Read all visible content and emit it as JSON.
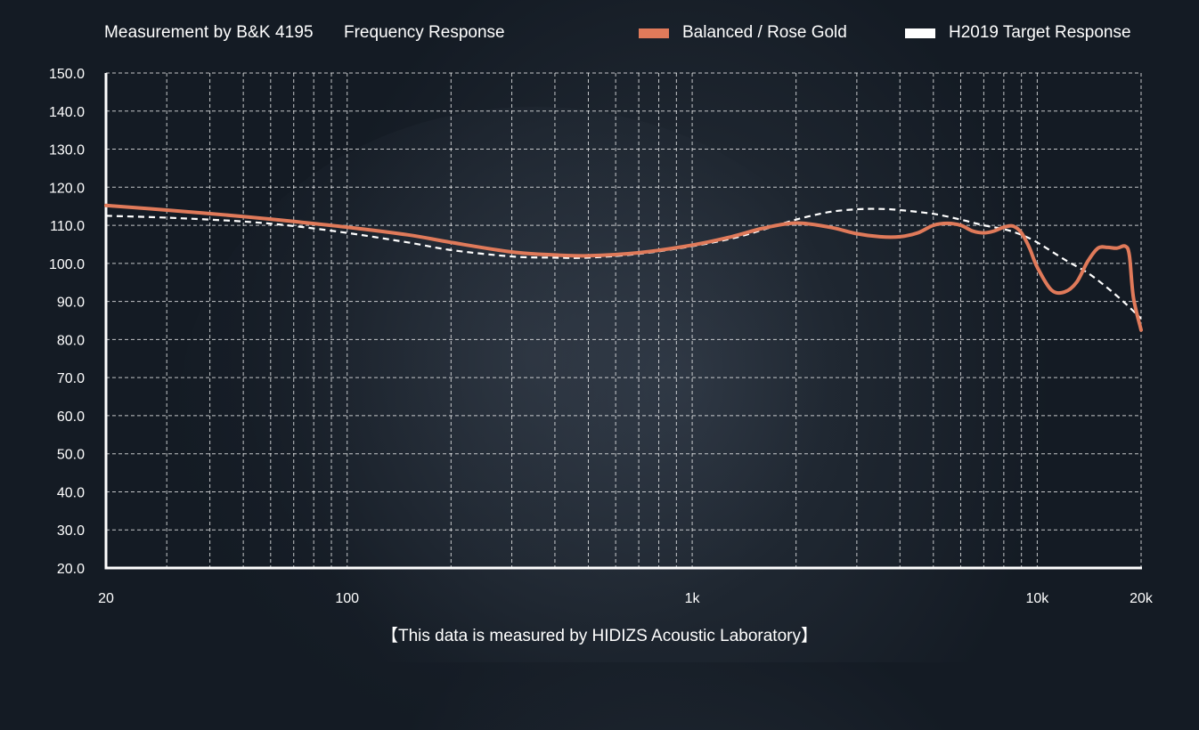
{
  "header": {
    "title": "Measurement by B&K 4195",
    "subtitle": "Frequency Response"
  },
  "footer": {
    "note": "【This data is measured by HIDIZS Acoustic Laboratory】"
  },
  "colors": {
    "series_measured": "#e07a5a",
    "series_target": "#ffffff",
    "grid": "#ffffff",
    "axis": "#ffffff"
  },
  "chart_data": {
    "type": "line",
    "title": "Frequency Response",
    "xscale": "log",
    "xlim": [
      20,
      20000
    ],
    "ylim": [
      20,
      150
    ],
    "grid": true,
    "legend_position": "top-right",
    "x_ticks": [
      {
        "value": 20,
        "label": "20"
      },
      {
        "value": 100,
        "label": "100"
      },
      {
        "value": 1000,
        "label": "1k"
      },
      {
        "value": 10000,
        "label": "10k"
      },
      {
        "value": 20000,
        "label": "20k"
      }
    ],
    "y_ticks": [
      {
        "value": 20,
        "label": "20.0"
      },
      {
        "value": 30,
        "label": "30.0"
      },
      {
        "value": 40,
        "label": "40.0"
      },
      {
        "value": 50,
        "label": "50.0"
      },
      {
        "value": 60,
        "label": "60.0"
      },
      {
        "value": 70,
        "label": "70.0"
      },
      {
        "value": 80,
        "label": "80.0"
      },
      {
        "value": 90,
        "label": "90.0"
      },
      {
        "value": 100,
        "label": "100.0"
      },
      {
        "value": 110,
        "label": "110.0"
      },
      {
        "value": 120,
        "label": "120.0"
      },
      {
        "value": 130,
        "label": "130.0"
      },
      {
        "value": 140,
        "label": "140.0"
      },
      {
        "value": 150,
        "label": "150.0"
      }
    ],
    "x_gridlines": [
      30,
      40,
      50,
      60,
      70,
      80,
      90,
      100,
      200,
      300,
      400,
      500,
      600,
      700,
      800,
      900,
      1000,
      2000,
      3000,
      4000,
      5000,
      6000,
      7000,
      8000,
      9000,
      10000,
      20000
    ],
    "series": [
      {
        "name": "Balanced / Rose Gold",
        "style": "solid",
        "x": [
          20,
          30,
          50,
          70,
          100,
          150,
          200,
          300,
          400,
          500,
          700,
          1000,
          1300,
          1600,
          2000,
          2500,
          3000,
          3500,
          4000,
          4500,
          5000,
          5500,
          6000,
          6500,
          7000,
          7500,
          8000,
          8500,
          9000,
          9500,
          10000,
          11000,
          12000,
          13000,
          14000,
          15000,
          16000,
          17000,
          18000,
          18500,
          19000,
          20000
        ],
        "y": [
          115.2,
          114.0,
          112.3,
          111.0,
          109.5,
          107.5,
          105.5,
          103.0,
          102.2,
          102.0,
          102.8,
          104.8,
          107.0,
          109.2,
          110.6,
          109.5,
          107.8,
          107.0,
          107.0,
          108.0,
          110.0,
          110.5,
          110.0,
          108.5,
          108.0,
          108.5,
          109.5,
          109.8,
          108.0,
          104.0,
          99.0,
          93.0,
          92.5,
          95.0,
          100.5,
          104.0,
          104.2,
          104.0,
          104.5,
          102.0,
          91.0,
          82.5
        ]
      },
      {
        "name": "H2019 Target Response",
        "style": "dashed",
        "x": [
          20,
          30,
          50,
          70,
          100,
          150,
          200,
          300,
          400,
          500,
          700,
          1000,
          1300,
          1600,
          2000,
          2500,
          3000,
          3500,
          4000,
          5000,
          6000,
          7000,
          8000,
          9000,
          10000,
          12000,
          14000,
          16000,
          18000,
          20000
        ],
        "y": [
          112.5,
          112.0,
          111.0,
          109.8,
          108.0,
          105.5,
          103.5,
          101.8,
          101.5,
          101.5,
          102.5,
          104.5,
          106.5,
          108.8,
          111.5,
          113.5,
          114.2,
          114.3,
          114.0,
          113.0,
          111.5,
          110.0,
          109.0,
          107.5,
          105.5,
          101.0,
          97.5,
          93.5,
          89.5,
          85.5
        ]
      }
    ]
  }
}
